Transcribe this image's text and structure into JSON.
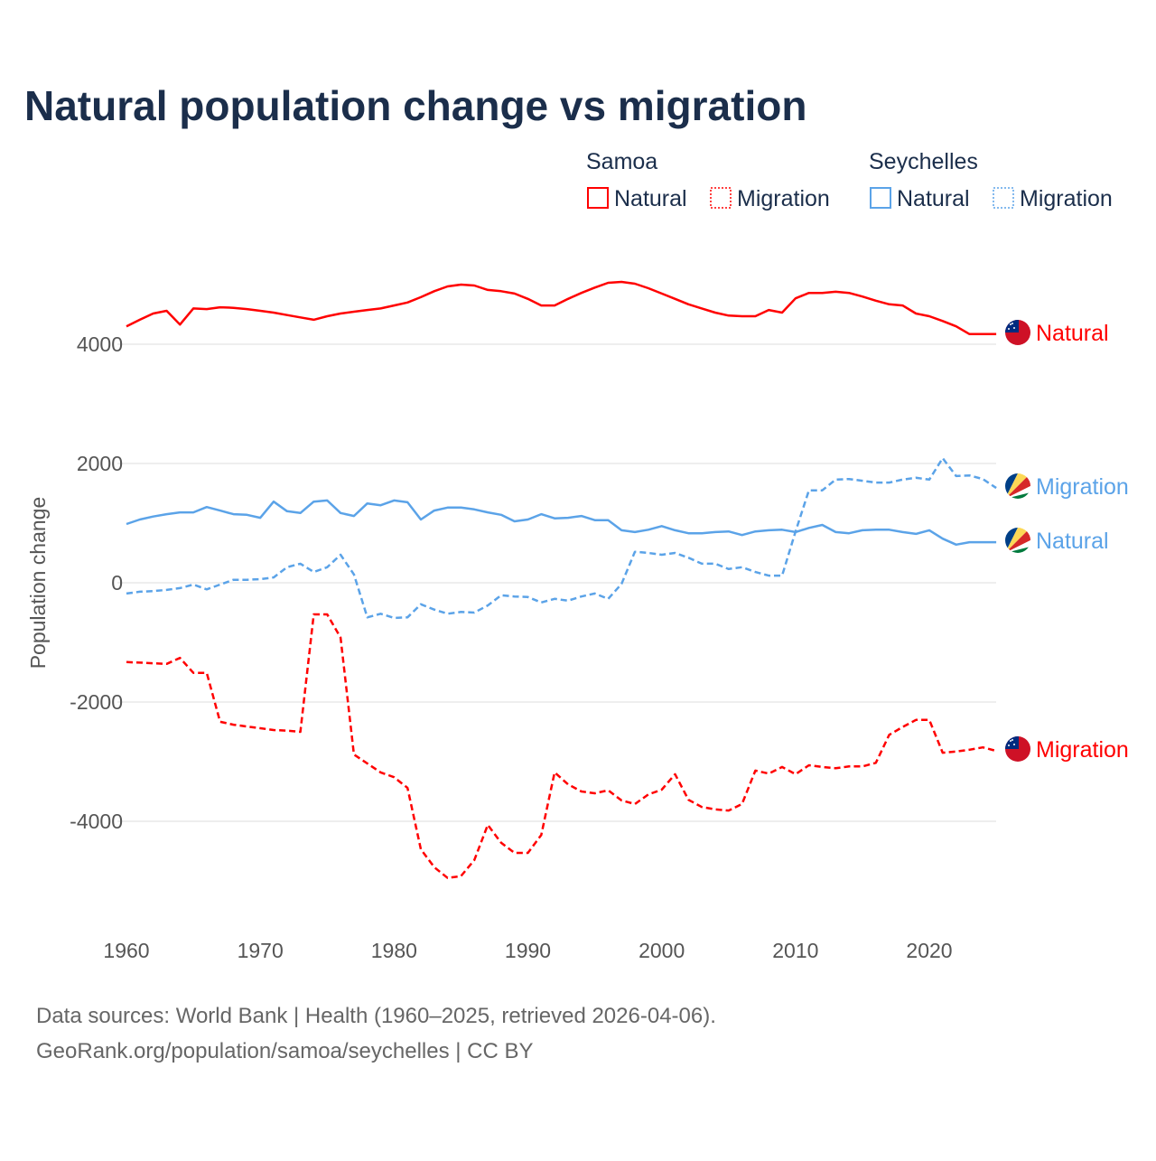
{
  "chart_data": {
    "type": "line",
    "title": "Natural population change vs migration",
    "xlabel": "",
    "ylabel": "Population change",
    "xlim": [
      1960,
      2025
    ],
    "ylim": [
      -5500,
      5500
    ],
    "x_ticks": [
      "1960",
      "1970",
      "1980",
      "1990",
      "2000",
      "2010",
      "2020"
    ],
    "y_ticks": [
      "4000",
      "2000",
      "0",
      "-2000",
      "-4000"
    ],
    "grid": true,
    "legend": {
      "placement": "top-right",
      "groups": [
        {
          "name": "Samoa",
          "entries": [
            "Natural",
            "Migration"
          ]
        },
        {
          "name": "Seychelles",
          "entries": [
            "Natural",
            "Migration"
          ]
        }
      ]
    },
    "x": [
      1960,
      1961,
      1962,
      1963,
      1964,
      1965,
      1966,
      1967,
      1968,
      1969,
      1970,
      1971,
      1972,
      1973,
      1974,
      1975,
      1976,
      1977,
      1978,
      1979,
      1980,
      1981,
      1982,
      1983,
      1984,
      1985,
      1986,
      1987,
      1988,
      1989,
      1990,
      1991,
      1992,
      1993,
      1994,
      1995,
      1996,
      1997,
      1998,
      1999,
      2000,
      2001,
      2002,
      2003,
      2004,
      2005,
      2006,
      2007,
      2008,
      2009,
      2010,
      2011,
      2012,
      2013,
      2014,
      2015,
      2016,
      2017,
      2018,
      2019,
      2020,
      2021,
      2022,
      2023,
      2024,
      2025
    ],
    "series": [
      {
        "name": "Samoa Natural",
        "country": "Samoa",
        "kind": "Natural",
        "color": "#ff0000",
        "dash": false,
        "end_label": "Natural",
        "values": [
          4300,
          4410,
          4515,
          4560,
          4330,
          4600,
          4590,
          4620,
          4610,
          4590,
          4560,
          4530,
          4490,
          4450,
          4410,
          4470,
          4515,
          4545,
          4575,
          4600,
          4650,
          4700,
          4790,
          4890,
          4970,
          5000,
          4985,
          4910,
          4890,
          4850,
          4760,
          4650,
          4650,
          4760,
          4860,
          4950,
          5030,
          5045,
          5015,
          4940,
          4850,
          4760,
          4670,
          4600,
          4530,
          4480,
          4470,
          4470,
          4575,
          4530,
          4770,
          4860,
          4860,
          4880,
          4860,
          4800,
          4730,
          4670,
          4650,
          4515,
          4470,
          4390,
          4300,
          4170,
          4170,
          4170
        ]
      },
      {
        "name": "Samoa Migration",
        "country": "Samoa",
        "kind": "Migration",
        "color": "#ff0000",
        "dash": true,
        "end_label": "Migration",
        "values": [
          -1330,
          -1340,
          -1350,
          -1360,
          -1260,
          -1510,
          -1510,
          -2330,
          -2380,
          -2410,
          -2440,
          -2470,
          -2480,
          -2500,
          -530,
          -530,
          -920,
          -2880,
          -3030,
          -3180,
          -3260,
          -3440,
          -4470,
          -4770,
          -4950,
          -4920,
          -4650,
          -4060,
          -4360,
          -4530,
          -4530,
          -4230,
          -3180,
          -3380,
          -3500,
          -3530,
          -3480,
          -3650,
          -3710,
          -3550,
          -3470,
          -3210,
          -3640,
          -3760,
          -3800,
          -3820,
          -3710,
          -3150,
          -3200,
          -3090,
          -3210,
          -3060,
          -3090,
          -3110,
          -3080,
          -3080,
          -3020,
          -2550,
          -2420,
          -2300,
          -2300,
          -2850,
          -2830,
          -2800,
          -2760,
          -2820
        ]
      },
      {
        "name": "Seychelles Natural",
        "country": "Seychelles",
        "kind": "Natural",
        "color": "#5ba3e8",
        "dash": false,
        "end_label": "Natural",
        "values": [
          985,
          1060,
          1110,
          1150,
          1180,
          1180,
          1270,
          1210,
          1150,
          1140,
          1090,
          1360,
          1200,
          1170,
          1360,
          1380,
          1170,
          1120,
          1330,
          1300,
          1380,
          1350,
          1060,
          1210,
          1260,
          1260,
          1230,
          1180,
          1140,
          1030,
          1060,
          1150,
          1080,
          1090,
          1120,
          1050,
          1050,
          880,
          850,
          890,
          950,
          880,
          830,
          830,
          850,
          860,
          800,
          860,
          880,
          890,
          850,
          920,
          970,
          850,
          830,
          880,
          890,
          890,
          850,
          820,
          880,
          740,
          640,
          680,
          680,
          680
        ]
      },
      {
        "name": "Seychelles Migration",
        "country": "Seychelles",
        "kind": "Migration",
        "color": "#5ba3e8",
        "dash": true,
        "end_label": "Migration",
        "values": [
          -180,
          -150,
          -140,
          -120,
          -90,
          -30,
          -110,
          -30,
          50,
          50,
          60,
          90,
          260,
          320,
          180,
          260,
          470,
          140,
          -580,
          -520,
          -590,
          -580,
          -360,
          -450,
          -520,
          -490,
          -500,
          -380,
          -210,
          -230,
          -240,
          -330,
          -270,
          -300,
          -230,
          -180,
          -270,
          -20,
          520,
          500,
          470,
          500,
          420,
          320,
          320,
          230,
          260,
          180,
          120,
          120,
          860,
          1550,
          1550,
          1730,
          1740,
          1710,
          1680,
          1680,
          1730,
          1760,
          1730,
          2090,
          1790,
          1800,
          1740,
          1590
        ]
      }
    ],
    "source_lines": [
      "Data sources: World Bank | Health (1960–2025, retrieved 2026-04-06).",
      "GeoRank.org/population/samoa/seychelles | CC BY"
    ]
  }
}
